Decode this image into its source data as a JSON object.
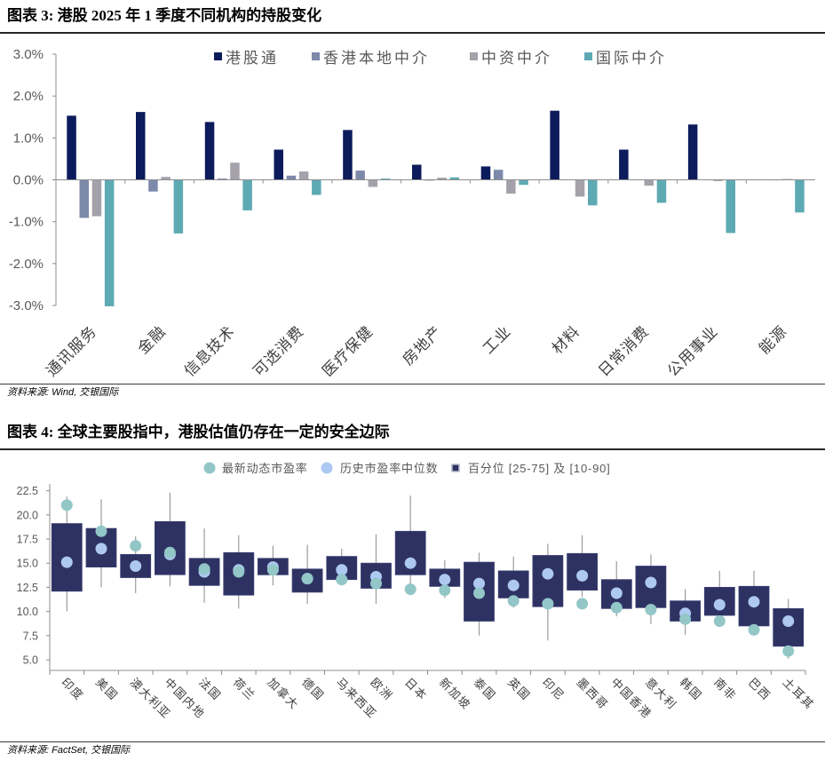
{
  "chart_data": [
    {
      "type": "bar",
      "title": "图表 3: 港股 2025 年 1 季度不同机构的持股变化",
      "source": "资料来源: Wind, 交银国际",
      "categories": [
        "通讯服务",
        "金融",
        "信息技术",
        "可选消费",
        "医疗保健",
        "房地产",
        "工业",
        "材料",
        "日常消费",
        "公用事业",
        "能源"
      ],
      "series": [
        {
          "name": "港股通",
          "color": "#0C1B5B",
          "values": [
            1.53,
            1.62,
            1.38,
            0.72,
            1.19,
            0.36,
            0.32,
            1.65,
            0.72,
            1.32,
            0.01
          ]
        },
        {
          "name": "香港本地中介",
          "color": "#7D89A9",
          "values": [
            -0.91,
            -0.28,
            0.03,
            0.1,
            0.22,
            -0.02,
            0.24,
            0.01,
            0.01,
            0.01,
            0.0
          ]
        },
        {
          "name": "中资中介",
          "color": "#A5A1AA",
          "values": [
            -0.87,
            0.07,
            0.41,
            0.2,
            -0.17,
            0.05,
            -0.33,
            -0.4,
            -0.14,
            -0.03,
            0.02
          ]
        },
        {
          "name": "国际中介",
          "color": "#5EAAB3",
          "values": [
            -3.02,
            -1.28,
            -0.73,
            -0.36,
            0.03,
            0.06,
            -0.12,
            -0.61,
            -0.55,
            -1.27,
            -0.78
          ]
        }
      ],
      "ylim": [
        -3,
        3
      ],
      "yticks": [
        {
          "value": 3,
          "label": "3.0%"
        },
        {
          "value": 2,
          "label": "2.0%"
        },
        {
          "value": 1,
          "label": "1.0%"
        },
        {
          "value": 0,
          "label": "0.0%"
        },
        {
          "value": -1,
          "label": "-1.0%"
        },
        {
          "value": -2,
          "label": "-2.0%"
        },
        {
          "value": -3,
          "label": "-3.0%"
        }
      ]
    },
    {
      "type": "box",
      "title": "图表 4: 全球主要股指中，港股估值仍存在一定的安全边际",
      "source": "资料来源: FactSet, 交银国际",
      "categories": [
        "印度",
        "美国",
        "澳大利亚",
        "中国内地",
        "法国",
        "荷兰",
        "加拿大",
        "德国",
        "马来西亚",
        "欧洲",
        "日本",
        "新加坡",
        "泰国",
        "英国",
        "印尼",
        "墨西哥",
        "中国香港",
        "意大利",
        "韩国",
        "南非",
        "巴西",
        "土耳其"
      ],
      "latest": {
        "name": "最新动态市盈率",
        "color": "#93C6C7",
        "values": [
          21.0,
          18.3,
          16.8,
          16.1,
          14.4,
          14.1,
          14.3,
          13.4,
          13.3,
          12.9,
          12.3,
          12.2,
          11.9,
          11.1,
          10.8,
          10.8,
          10.4,
          10.2,
          9.2,
          9.0,
          8.1,
          5.9
        ]
      },
      "median": {
        "name": "历史市盈率中位数",
        "color": "#ADC9F2",
        "values": [
          15.1,
          16.5,
          14.7,
          15.9,
          14.1,
          14.3,
          14.6,
          13.4,
          14.3,
          13.6,
          15.0,
          13.3,
          12.9,
          12.7,
          13.9,
          13.7,
          11.9,
          13.0,
          9.8,
          10.7,
          11.0,
          9.0
        ]
      },
      "percentiles": {
        "name": "百分位 [25-75] 及 [10-90]",
        "color": "#2E3263",
        "p10": [
          10.0,
          12.5,
          11.9,
          12.6,
          10.9,
          10.3,
          12.7,
          10.8,
          12.7,
          10.8,
          12.5,
          11.4,
          7.5,
          10.4,
          7.0,
          11.5,
          9.5,
          8.7,
          7.6,
          9.0,
          7.5,
          5.1
        ],
        "p25": [
          12.1,
          14.6,
          13.5,
          13.8,
          12.7,
          11.7,
          13.8,
          12.0,
          13.3,
          12.4,
          13.8,
          12.6,
          9.0,
          11.4,
          10.5,
          12.2,
          10.3,
          10.4,
          9.0,
          9.6,
          8.5,
          6.4
        ],
        "p75": [
          19.1,
          18.6,
          15.9,
          19.3,
          15.5,
          16.1,
          15.5,
          14.4,
          15.7,
          15.0,
          18.3,
          14.4,
          15.1,
          14.2,
          15.8,
          16.0,
          13.3,
          14.7,
          11.1,
          12.5,
          12.6,
          10.3
        ],
        "p90": [
          21.9,
          21.6,
          17.8,
          22.3,
          18.6,
          17.9,
          16.8,
          16.9,
          16.5,
          18.0,
          22.0,
          15.3,
          16.1,
          15.7,
          17.0,
          17.9,
          15.2,
          15.9,
          12.3,
          14.2,
          14.2,
          11.3
        ]
      },
      "ylim": [
        3.9,
        23.2
      ],
      "yticks": [
        {
          "value": 22.5,
          "label": "22.5"
        },
        {
          "value": 20.0,
          "label": "20.0"
        },
        {
          "value": 17.5,
          "label": "17.5"
        },
        {
          "value": 15.0,
          "label": "15.0"
        },
        {
          "value": 12.5,
          "label": "12.5"
        },
        {
          "value": 10.0,
          "label": "10.0"
        },
        {
          "value": 7.5,
          "label": "7.5"
        },
        {
          "value": 5.0,
          "label": "5.0"
        }
      ]
    }
  ]
}
